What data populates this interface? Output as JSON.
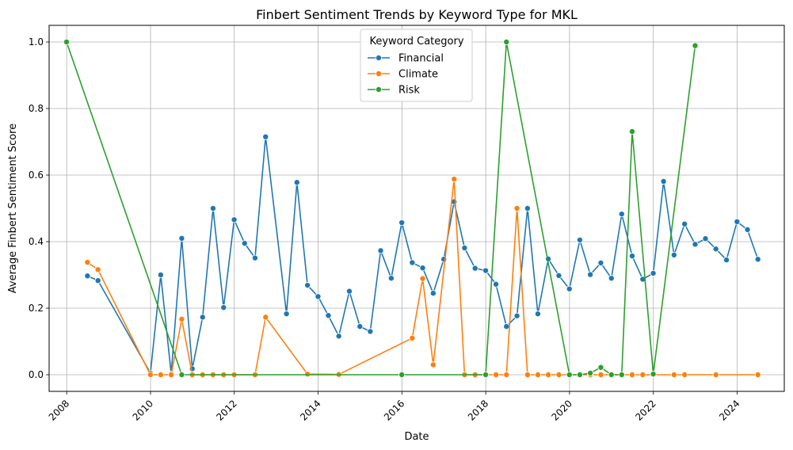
{
  "chart_data": {
    "type": "line",
    "title": "Finbert Sentiment Trends by Keyword Type for MKL",
    "xlabel": "Date",
    "ylabel": "Average Finbert Sentiment Score",
    "xlim": [
      "2007-08-01",
      "2025-02-15"
    ],
    "ylim": [
      -0.05,
      1.05
    ],
    "x_ticks": [
      "2008",
      "2010",
      "2012",
      "2014",
      "2016",
      "2018",
      "2020",
      "2022",
      "2024"
    ],
    "y_ticks": [
      "0.0",
      "0.2",
      "0.4",
      "0.6",
      "0.8",
      "1.0"
    ],
    "grid": true,
    "legend": {
      "title": "Keyword Category",
      "position": "top-center"
    },
    "series": [
      {
        "name": "Financial",
        "color": "#1f77b4",
        "x": [
          "2008-06-30",
          "2008-09-30",
          "2009-12-31",
          "2010-03-31",
          "2010-06-30",
          "2010-09-30",
          "2010-12-31",
          "2011-03-31",
          "2011-06-30",
          "2011-09-30",
          "2011-12-31",
          "2012-03-31",
          "2012-06-30",
          "2012-09-30",
          "2013-03-31",
          "2013-06-30",
          "2013-09-30",
          "2013-12-31",
          "2014-03-31",
          "2014-06-30",
          "2014-09-30",
          "2014-12-31",
          "2015-03-31",
          "2015-06-30",
          "2015-09-30",
          "2015-12-31",
          "2016-03-31",
          "2016-06-30",
          "2016-09-30",
          "2016-12-31",
          "2017-03-31",
          "2017-06-30",
          "2017-09-30",
          "2017-12-31",
          "2018-03-31",
          "2018-06-30",
          "2018-09-30",
          "2018-12-31",
          "2019-03-31",
          "2019-06-30",
          "2019-09-30",
          "2019-12-31",
          "2020-03-31",
          "2020-06-30",
          "2020-09-30",
          "2020-12-31",
          "2021-03-31",
          "2021-06-30",
          "2021-09-30",
          "2021-12-31",
          "2022-03-31",
          "2022-06-30",
          "2022-09-30",
          "2022-12-31",
          "2023-03-31",
          "2023-06-30",
          "2023-09-30",
          "2023-12-31",
          "2024-03-31",
          "2024-06-30"
        ],
        "values": [
          0.297,
          0.283,
          0.005,
          0.3,
          0.003,
          0.41,
          0.018,
          0.173,
          0.5,
          0.202,
          0.466,
          0.395,
          0.351,
          0.715,
          0.183,
          0.578,
          0.269,
          0.235,
          0.178,
          0.116,
          0.251,
          0.145,
          0.13,
          0.373,
          0.29,
          0.457,
          0.337,
          0.321,
          0.245,
          0.347,
          0.52,
          0.381,
          0.32,
          0.313,
          0.272,
          0.145,
          0.177,
          0.5,
          0.183,
          0.348,
          0.298,
          0.258,
          0.405,
          0.301,
          0.336,
          0.29,
          0.483,
          0.357,
          0.287,
          0.305,
          0.581,
          0.36,
          0.453,
          0.392,
          0.409,
          0.378,
          0.345,
          0.46,
          0.436,
          0.347
        ]
      },
      {
        "name": "Climate",
        "color": "#ff7f0e",
        "x": [
          "2008-06-30",
          "2008-09-30",
          "2009-12-31",
          "2010-03-31",
          "2010-06-30",
          "2010-09-30",
          "2010-12-31",
          "2011-03-31",
          "2011-06-30",
          "2011-09-30",
          "2011-12-31",
          "2012-06-30",
          "2012-09-30",
          "2013-09-30",
          "2014-06-30",
          "2016-03-31",
          "2016-06-30",
          "2016-09-30",
          "2017-03-31",
          "2017-06-30",
          "2017-09-30",
          "2017-12-31",
          "2018-03-31",
          "2018-06-30",
          "2018-09-30",
          "2018-12-31",
          "2019-03-31",
          "2019-06-30",
          "2019-09-30",
          "2019-12-31",
          "2020-03-31",
          "2020-06-30",
          "2020-09-30",
          "2020-12-31",
          "2021-03-31",
          "2021-06-30",
          "2021-09-30",
          "2021-12-31",
          "2022-06-30",
          "2022-09-30",
          "2023-06-30",
          "2024-06-30"
        ],
        "values": [
          0.338,
          0.316,
          0.0,
          0.0,
          0.0,
          0.167,
          0.0,
          0.0,
          0.0,
          0.0,
          0.0,
          0.0,
          0.173,
          0.002,
          0.001,
          0.11,
          0.289,
          0.03,
          0.588,
          0.0,
          0.0,
          0.0,
          0.0,
          0.0,
          0.5,
          0.0,
          0.0,
          0.0,
          0.0,
          0.0,
          0.0,
          0.0,
          0.0,
          0.0,
          0.0,
          0.0,
          0.0,
          0.0,
          0.0,
          0.0,
          0.0,
          0.0
        ]
      },
      {
        "name": "Risk",
        "color": "#2ca02c",
        "x": [
          "2007-12-31",
          "2010-09-30",
          "2015-12-31",
          "2017-12-31",
          "2018-06-30",
          "2019-12-31",
          "2020-03-31",
          "2020-06-30",
          "2020-09-30",
          "2020-12-31",
          "2021-03-31",
          "2021-06-30",
          "2021-12-31",
          "2022-12-31"
        ],
        "values": [
          1.0,
          0.0,
          0.0,
          0.0,
          1.0,
          0.0,
          0.0,
          0.005,
          0.022,
          0.0,
          0.0,
          0.731,
          0.002,
          0.989
        ]
      }
    ]
  }
}
